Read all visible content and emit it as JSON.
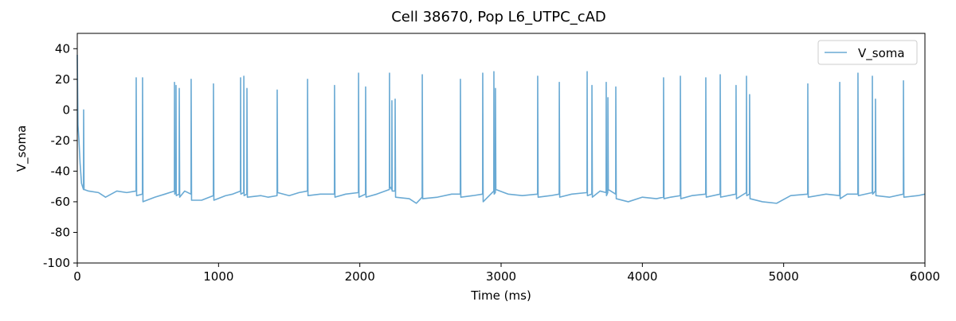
{
  "chart_data": {
    "type": "line",
    "title": "Cell 38670, Pop L6_UTPC_cAD",
    "x_label": "Time (ms)",
    "y_label": "V_soma",
    "xlim": [
      0,
      6000
    ],
    "ylim": [
      -100,
      50
    ],
    "xticks": [
      0,
      1000,
      2000,
      3000,
      4000,
      5000,
      6000
    ],
    "yticks": [
      -100,
      -80,
      -60,
      -40,
      -20,
      0,
      20,
      40
    ],
    "grid": false,
    "legend": "upper right",
    "x": [
      0,
      5,
      12,
      20,
      30,
      44,
      45,
      48,
      80,
      150,
      200,
      280,
      350,
      416,
      417,
      420,
      461,
      462,
      465,
      550,
      620,
      687,
      688,
      690,
      698,
      699,
      701,
      721,
      722,
      725,
      760,
      805,
      806,
      809,
      880,
      963,
      964,
      967,
      1050,
      1100,
      1155,
      1156,
      1158,
      1178,
      1179,
      1181,
      1200,
      1201,
      1204,
      1300,
      1350,
      1414,
      1415,
      1418,
      1500,
      1570,
      1629,
      1630,
      1633,
      1720,
      1820,
      1821,
      1824,
      1900,
      1990,
      1991,
      1994,
      2040,
      2041,
      2044,
      2120,
      2209,
      2210,
      2212,
      2226,
      2227,
      2229,
      2249,
      2250,
      2253,
      2350,
      2400,
      2441,
      2442,
      2445,
      2550,
      2650,
      2711,
      2712,
      2715,
      2800,
      2869,
      2870,
      2873,
      2948,
      2949,
      2951,
      2959,
      2960,
      2963,
      3050,
      3150,
      3258,
      3259,
      3262,
      3350,
      3411,
      3412,
      3415,
      3500,
      3608,
      3609,
      3611,
      3642,
      3643,
      3646,
      3700,
      3743,
      3744,
      3746,
      3755,
      3756,
      3759,
      3811,
      3812,
      3815,
      3900,
      4000,
      4100,
      4149,
      4150,
      4153,
      4200,
      4268,
      4269,
      4272,
      4350,
      4448,
      4449,
      4452,
      4550,
      4551,
      4554,
      4662,
      4663,
      4666,
      4736,
      4737,
      4739,
      4758,
      4759,
      4762,
      4850,
      4950,
      5050,
      5170,
      5171,
      5174,
      5300,
      5396,
      5397,
      5400,
      5450,
      5525,
      5526,
      5529,
      5627,
      5628,
      5630,
      5649,
      5650,
      5653,
      5750,
      5847,
      5848,
      5851,
      5950,
      6000
    ],
    "series": [
      {
        "name": "V_soma",
        "color": "#6aaad4",
        "values": [
          36,
          -10,
          -20,
          -35,
          -48,
          -52,
          0,
          -52,
          -53,
          -54,
          -57,
          -53,
          -54,
          -53,
          21,
          -56,
          -55,
          21,
          -60,
          -57,
          -55,
          -53,
          18,
          -55,
          -54,
          16,
          -56,
          -55,
          14,
          -57,
          -53,
          -55,
          20,
          -59,
          -59,
          -56,
          17,
          -59,
          -56,
          -55,
          -53,
          21,
          -55,
          -54,
          22,
          -56,
          -55,
          14,
          -57,
          -56,
          -57,
          -56,
          13,
          -54,
          -56,
          -54,
          -53,
          20,
          -56,
          -55,
          -55,
          16,
          -57,
          -55,
          -54,
          24,
          -57,
          -55,
          15,
          -57,
          -55,
          -52,
          24,
          -50,
          -52,
          6,
          -53,
          -53,
          7,
          -57,
          -58,
          -61,
          -57,
          23,
          -58,
          -57,
          -55,
          -55,
          20,
          -57,
          -56,
          -55,
          24,
          -60,
          -53,
          25,
          -55,
          -54,
          14,
          -52,
          -55,
          -56,
          -55,
          22,
          -57,
          -56,
          -55,
          18,
          -57,
          -55,
          -54,
          25,
          -56,
          -55,
          16,
          -57,
          -53,
          -54,
          18,
          -56,
          -54,
          8,
          -52,
          -55,
          15,
          -58,
          -60,
          -57,
          -58,
          -57,
          21,
          -58,
          -57,
          -56,
          22,
          -58,
          -56,
          -55,
          21,
          -57,
          -55,
          23,
          -57,
          -55,
          16,
          -58,
          -54,
          22,
          -56,
          -55,
          10,
          -58,
          -60,
          -61,
          -56,
          -55,
          17,
          -57,
          -55,
          -56,
          18,
          -58,
          -55,
          -55,
          24,
          -56,
          -54,
          22,
          -55,
          -53,
          7,
          -56,
          -57,
          -55,
          19,
          -57,
          -56,
          -55
        ]
      }
    ]
  }
}
